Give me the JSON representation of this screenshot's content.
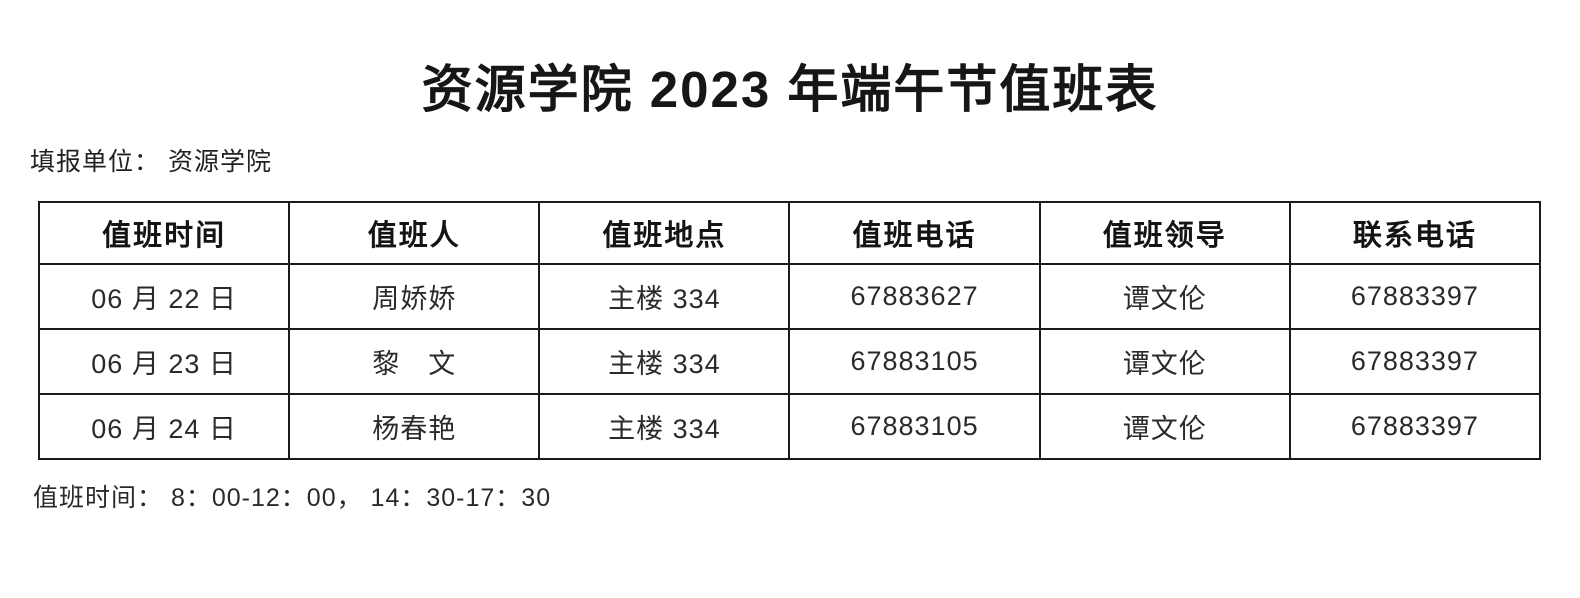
{
  "document": {
    "title": "资源学院 2023 年端午节值班表",
    "unit_line": "填报单位： 资源学院",
    "footer_note": "值班时间：  8：00-12：00，  14：30-17：30"
  },
  "table": {
    "headers": [
      "值班时间",
      "值班人",
      "值班地点",
      "值班电话",
      "值班领导",
      "联系电话"
    ],
    "rows": [
      [
        "06 月 22 日",
        "周娇娇",
        "主楼 334",
        "67883627",
        "谭文伦",
        "67883397"
      ],
      [
        "06 月 23 日",
        "黎　文",
        "主楼 334",
        "67883105",
        "谭文伦",
        "67883397"
      ],
      [
        "06 月 24 日",
        "杨春艳",
        "主楼 334",
        "67883105",
        "谭文伦",
        "67883397"
      ]
    ]
  },
  "colors": {
    "background": "#ffffff",
    "text": "#1c1c1c",
    "border": "#1b1b1b"
  }
}
